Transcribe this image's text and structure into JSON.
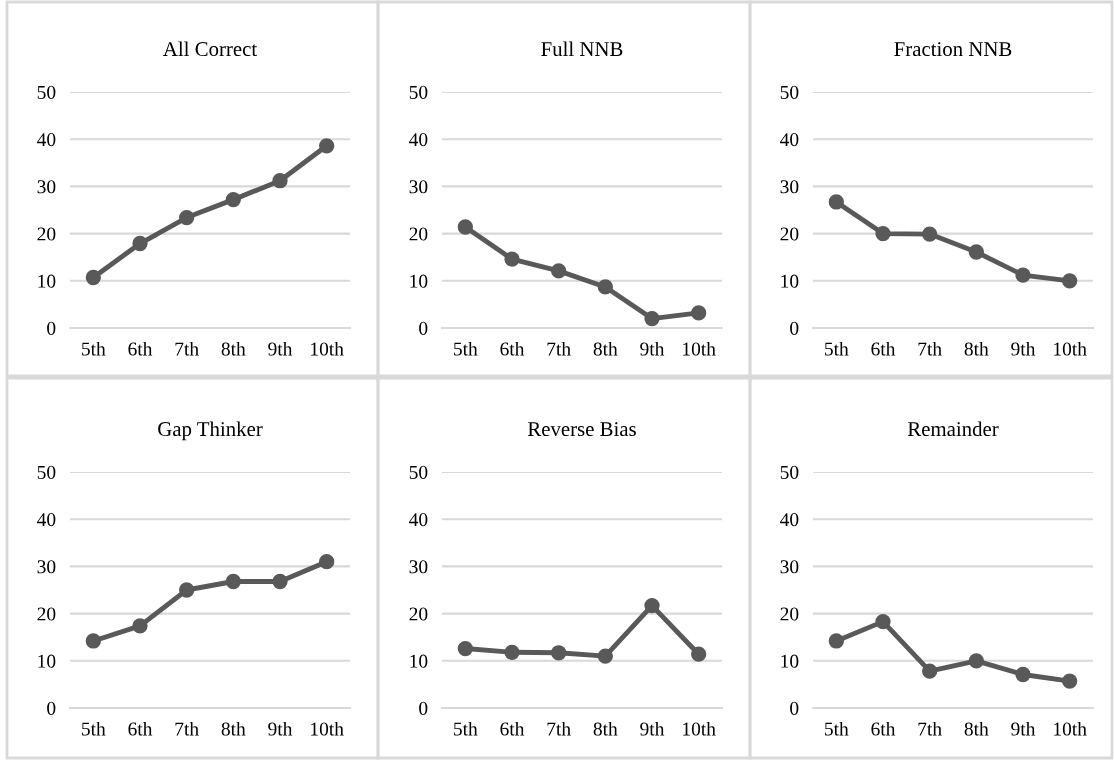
{
  "chart_data": [
    {
      "type": "line",
      "title": "All Correct",
      "categories": [
        "5th",
        "6th",
        "7th",
        "8th",
        "9th",
        "10th"
      ],
      "values": [
        10.7,
        17.9,
        23.4,
        27.2,
        31.2,
        38.6
      ],
      "color": "#595959",
      "ylim": [
        0,
        50
      ],
      "yticks": [
        0,
        10,
        20,
        30,
        40,
        50
      ],
      "grid": "y",
      "marker": "circle",
      "line_style": "solid"
    },
    {
      "type": "line",
      "title": "Full NNB",
      "categories": [
        "5th",
        "6th",
        "7th",
        "8th",
        "9th",
        "10th"
      ],
      "values": [
        21.4,
        14.6,
        12.1,
        8.7,
        2.0,
        3.2
      ],
      "color": "#595959",
      "ylim": [
        0,
        50
      ],
      "yticks": [
        0,
        10,
        20,
        30,
        40,
        50
      ],
      "grid": "y",
      "marker": "circle",
      "line_style": "solid"
    },
    {
      "type": "line",
      "title": "Fraction NNB",
      "categories": [
        "5th",
        "6th",
        "7th",
        "8th",
        "9th",
        "10th"
      ],
      "values": [
        26.7,
        20.0,
        19.9,
        16.1,
        11.2,
        10.0
      ],
      "color": "#595959",
      "ylim": [
        0,
        50
      ],
      "yticks": [
        0,
        10,
        20,
        30,
        40,
        50
      ],
      "grid": "y",
      "marker": "circle",
      "line_style": "solid"
    },
    {
      "type": "line",
      "title": "Gap Thinker",
      "categories": [
        "5th",
        "6th",
        "7th",
        "8th",
        "9th",
        "10th"
      ],
      "values": [
        14.2,
        17.4,
        25.0,
        26.8,
        26.8,
        31.0
      ],
      "color": "#595959",
      "ylim": [
        0,
        50
      ],
      "yticks": [
        0,
        10,
        20,
        30,
        40,
        50
      ],
      "grid": "y",
      "marker": "circle",
      "line_style": "solid"
    },
    {
      "type": "line",
      "title": "Reverse Bias",
      "categories": [
        "5th",
        "6th",
        "7th",
        "8th",
        "9th",
        "10th"
      ],
      "values": [
        12.6,
        11.8,
        11.7,
        11.0,
        21.7,
        11.4
      ],
      "color": "#595959",
      "ylim": [
        0,
        50
      ],
      "yticks": [
        0,
        10,
        20,
        30,
        40,
        50
      ],
      "grid": "y",
      "marker": "circle",
      "line_style": "solid"
    },
    {
      "type": "line",
      "title": "Remainder",
      "categories": [
        "5th",
        "6th",
        "7th",
        "8th",
        "9th",
        "10th"
      ],
      "values": [
        14.2,
        18.3,
        7.8,
        10.0,
        7.1,
        5.7
      ],
      "color": "#595959",
      "ylim": [
        0,
        50
      ],
      "yticks": [
        0,
        10,
        20,
        30,
        40,
        50
      ],
      "grid": "y",
      "marker": "circle",
      "line_style": "solid"
    }
  ]
}
